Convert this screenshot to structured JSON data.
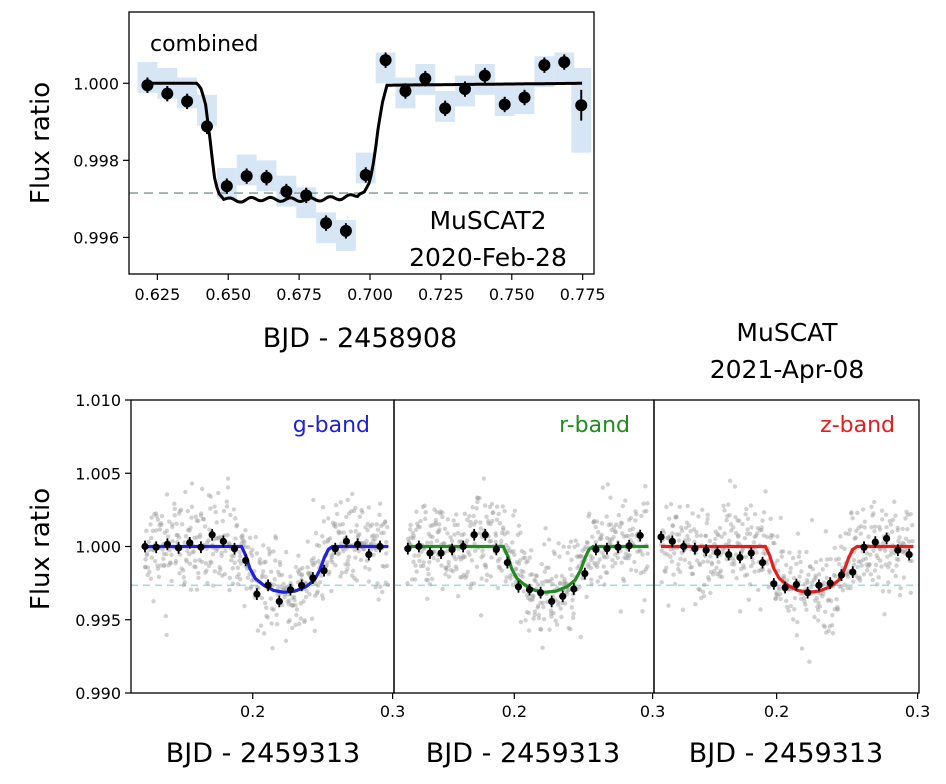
{
  "chart_data": [
    {
      "type": "scatter",
      "annotation": "combined",
      "instrument": "MuSCAT2",
      "date": "2020-Feb-28",
      "xlabel": "BJD - 2458908",
      "ylabel": "Flux ratio",
      "xlim": [
        0.615,
        0.779
      ],
      "ylim": [
        0.99505,
        1.00185
      ],
      "x_ticks": [
        "0.625",
        "0.650",
        "0.675",
        "0.700",
        "0.725",
        "0.750",
        "0.775"
      ],
      "y_ticks": [
        "0.996",
        "0.998",
        "1.000"
      ],
      "reference_level": 0.99715,
      "binned_x": [
        0.6215,
        0.6285,
        0.6355,
        0.6425,
        0.6495,
        0.6565,
        0.6635,
        0.6705,
        0.6775,
        0.6845,
        0.6915,
        0.6985,
        0.7055,
        0.7125,
        0.7195,
        0.7265,
        0.7335,
        0.7405,
        0.7475,
        0.7545,
        0.7615,
        0.7685,
        0.7745
      ],
      "binned_y": [
        0.99995,
        0.99973,
        0.99953,
        0.99888,
        0.99733,
        0.99759,
        0.99755,
        0.99719,
        0.99709,
        0.99637,
        0.99617,
        0.99762,
        1.0006,
        0.9998,
        1.00012,
        0.99935,
        0.99985,
        1.0002,
        0.99945,
        0.99963,
        1.00047,
        1.00055,
        0.99943
      ],
      "binned_err": [
        0.0002,
        0.0002,
        0.0002,
        0.0002,
        0.0002,
        0.0002,
        0.0002,
        0.0002,
        0.0002,
        0.0002,
        0.0002,
        0.0002,
        0.0002,
        0.0002,
        0.0002,
        0.0002,
        0.0002,
        0.0002,
        0.0002,
        0.0002,
        0.0002,
        0.0002,
        0.0004
      ],
      "band_y": [
        1.00015,
        1.0,
        0.99975,
        0.9993,
        0.9974,
        0.99775,
        0.9976,
        0.9972,
        0.9969,
        0.99625,
        0.99605,
        0.9978,
        1.0004,
        0.99975,
        1.0001,
        0.9994,
        0.9998,
        1.0001,
        0.99955,
        0.9996,
        1.0003,
        1.0004,
        0.9993
      ],
      "band_halfwidth": [
        0.0004,
        0.0004,
        0.0004,
        0.0004,
        0.0004,
        0.0004,
        0.0004,
        0.0004,
        0.0004,
        0.0004,
        0.0004,
        0.0004,
        0.0004,
        0.0004,
        0.0004,
        0.0004,
        0.0004,
        0.0004,
        0.0004,
        0.0004,
        0.0004,
        0.0004,
        0.0011
      ],
      "model_x": [
        0.622,
        0.639,
        0.6405,
        0.642,
        0.6435,
        0.645,
        0.6465,
        0.648,
        0.652,
        0.66,
        0.67,
        0.68,
        0.69,
        0.695,
        0.698,
        0.7,
        0.7015,
        0.703,
        0.7045,
        0.706,
        0.775
      ],
      "model_y": [
        1.0,
        1.0,
        0.99985,
        0.99945,
        0.9986,
        0.9976,
        0.99715,
        0.99703,
        0.99695,
        0.997,
        0.99698,
        0.99698,
        0.99703,
        0.99708,
        0.99718,
        0.99745,
        0.99805,
        0.9989,
        0.99955,
        0.99995,
        1.0
      ]
    },
    {
      "type": "scatter",
      "band": "g-band",
      "instrument": "MuSCAT",
      "date": "2021-Apr-08",
      "xlabel": "BJD - 2459313",
      "ylabel": "Flux ratio",
      "xlim": [
        0.113,
        0.301
      ],
      "ylim": [
        0.99,
        1.01
      ],
      "x_ticks": [
        "0.2",
        "0.3"
      ],
      "y_ticks": [
        "0.990",
        "0.995",
        "1.000",
        "1.005",
        "1.010"
      ],
      "reference_level": 0.99735,
      "line_color": "#1f1fe0",
      "binned_x": [
        0.123,
        0.131,
        0.139,
        0.147,
        0.155,
        0.163,
        0.171,
        0.179,
        0.187,
        0.195,
        0.203,
        0.211,
        0.219,
        0.227,
        0.235,
        0.243,
        0.251,
        0.259,
        0.267,
        0.275,
        0.283,
        0.291
      ],
      "binned_y": [
        1.0,
        0.99995,
        1.00015,
        0.9999,
        1.00025,
        0.99995,
        1.0008,
        1.00035,
        0.99985,
        0.99905,
        0.99675,
        0.99735,
        0.99625,
        0.99705,
        0.99735,
        0.99785,
        0.99835,
        0.99985,
        1.00035,
        1.00015,
        0.99945,
        1.0
      ],
      "binned_err": [
        0.0004,
        0.0004,
        0.0004,
        0.0004,
        0.0004,
        0.0004,
        0.0004,
        0.0004,
        0.0004,
        0.0004,
        0.0004,
        0.0004,
        0.0004,
        0.0004,
        0.0004,
        0.0004,
        0.0004,
        0.0004,
        0.0004,
        0.0004,
        0.0004,
        0.0004
      ],
      "model_x": [
        0.123,
        0.192,
        0.195,
        0.198,
        0.202,
        0.208,
        0.215,
        0.222,
        0.23,
        0.238,
        0.244,
        0.248,
        0.251,
        0.254,
        0.257,
        0.297
      ],
      "model_y": [
        1.0,
        1.0,
        0.9994,
        0.9985,
        0.9978,
        0.99735,
        0.997,
        0.99688,
        0.99695,
        0.99725,
        0.9977,
        0.9984,
        0.9992,
        0.9998,
        1.0,
        1.0
      ],
      "scatter_seed": 11
    },
    {
      "type": "scatter",
      "band": "r-band",
      "xlabel": "BJD - 2459313",
      "xlim": [
        0.113,
        0.301
      ],
      "ylim": [
        0.99,
        1.01
      ],
      "x_ticks": [
        "0.2",
        "0.3"
      ],
      "reference_level": 0.99735,
      "line_color": "#1e8c1e",
      "binned_x": [
        0.123,
        0.131,
        0.139,
        0.147,
        0.155,
        0.163,
        0.171,
        0.179,
        0.187,
        0.195,
        0.203,
        0.211,
        0.219,
        0.227,
        0.235,
        0.243,
        0.251,
        0.259,
        0.267,
        0.275,
        0.283,
        0.291
      ],
      "binned_y": [
        0.99985,
        1.0,
        0.99955,
        0.99955,
        0.9998,
        1.0,
        1.0008,
        1.0008,
        0.9998,
        0.9989,
        0.99725,
        0.99705,
        0.99685,
        0.99625,
        0.9966,
        0.9971,
        0.99815,
        0.9998,
        0.99985,
        0.99995,
        1.00005,
        1.00075
      ],
      "binned_err": [
        0.0004,
        0.0004,
        0.0004,
        0.0004,
        0.0004,
        0.0004,
        0.0004,
        0.0004,
        0.0004,
        0.0004,
        0.0004,
        0.0004,
        0.0004,
        0.0004,
        0.0004,
        0.0004,
        0.0004,
        0.0004,
        0.0004,
        0.0004,
        0.0004,
        0.0004
      ],
      "model_x": [
        0.123,
        0.192,
        0.195,
        0.198,
        0.202,
        0.208,
        0.215,
        0.222,
        0.23,
        0.238,
        0.244,
        0.248,
        0.251,
        0.254,
        0.257,
        0.297
      ],
      "model_y": [
        1.0,
        1.0,
        0.9994,
        0.9985,
        0.9978,
        0.99735,
        0.997,
        0.99688,
        0.99695,
        0.99725,
        0.9977,
        0.9984,
        0.9992,
        0.9998,
        1.0,
        1.0
      ],
      "scatter_seed": 23
    },
    {
      "type": "scatter",
      "band": "z-band",
      "xlabel": "BJD - 2459313",
      "xlim": [
        0.113,
        0.301
      ],
      "ylim": [
        0.99,
        1.01
      ],
      "x_ticks": [
        "0.2",
        "0.3"
      ],
      "reference_level": 0.99735,
      "line_color": "#e81c1c",
      "binned_x": [
        0.118,
        0.126,
        0.134,
        0.142,
        0.15,
        0.158,
        0.166,
        0.174,
        0.182,
        0.19,
        0.198,
        0.206,
        0.214,
        0.222,
        0.23,
        0.238,
        0.246,
        0.254,
        0.262,
        0.27,
        0.278,
        0.286,
        0.294
      ],
      "binned_y": [
        1.00065,
        1.00035,
        1.0,
        0.99985,
        0.99975,
        0.9996,
        0.99945,
        0.99925,
        0.99955,
        0.9989,
        0.99745,
        0.9972,
        0.9974,
        0.99685,
        0.99735,
        0.9975,
        0.99805,
        0.99825,
        0.99995,
        1.0003,
        1.00055,
        0.99975,
        0.99945
      ],
      "binned_err": [
        0.0004,
        0.0004,
        0.0004,
        0.0004,
        0.0004,
        0.0004,
        0.0004,
        0.0004,
        0.0004,
        0.0004,
        0.0004,
        0.0004,
        0.0004,
        0.0004,
        0.0004,
        0.0004,
        0.0004,
        0.0004,
        0.0004,
        0.0004,
        0.0004,
        0.0004,
        0.0004
      ],
      "model_x": [
        0.118,
        0.192,
        0.195,
        0.198,
        0.202,
        0.208,
        0.215,
        0.222,
        0.23,
        0.238,
        0.244,
        0.248,
        0.251,
        0.254,
        0.257,
        0.297
      ],
      "model_y": [
        1.0,
        1.0,
        0.9994,
        0.9985,
        0.9978,
        0.99735,
        0.997,
        0.99688,
        0.99695,
        0.99725,
        0.9977,
        0.9984,
        0.9992,
        0.9998,
        1.0,
        1.0
      ],
      "scatter_seed": 37
    }
  ],
  "colors": {
    "binned_points": "#000000",
    "raw_points": "#9a9a9a",
    "uncertainty_band": "#d6e6f4",
    "reference_line_top": "#8fa5a0",
    "reference_line_bottom": "#a6d8e6"
  }
}
